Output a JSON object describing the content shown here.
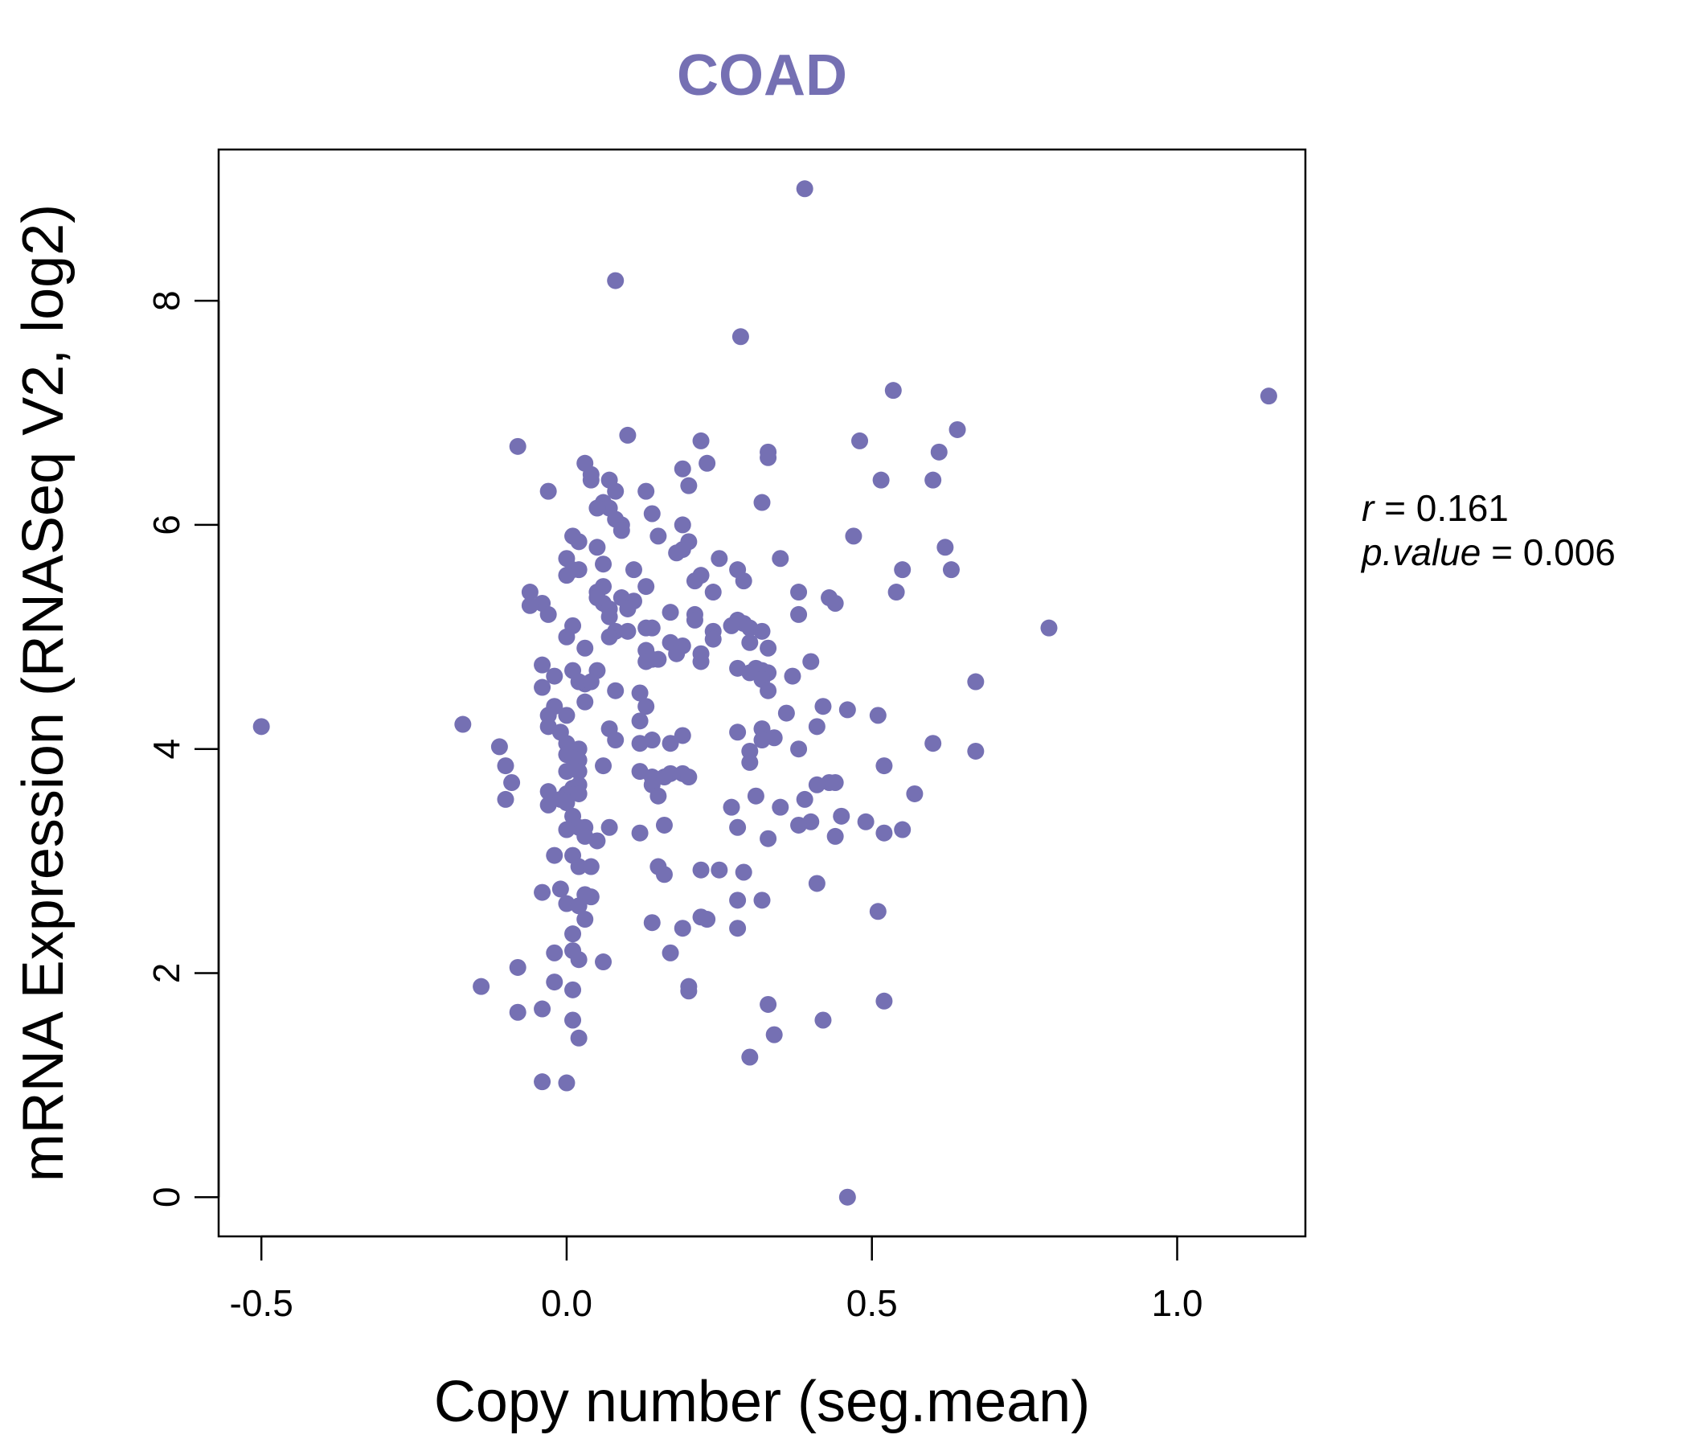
{
  "chart_data": {
    "type": "scatter",
    "title": "COAD",
    "xlabel": "Copy number (seg.mean)",
    "ylabel": "mRNA Expression (RNASeq V2, log2)",
    "xlim": [
      -0.57,
      1.21
    ],
    "ylim": [
      -0.35,
      9.35
    ],
    "x_ticks": [
      -0.5,
      0.0,
      0.5,
      1.0
    ],
    "x_tick_labels": [
      "-0.5",
      "0.0",
      "0.5",
      "1.0"
    ],
    "y_ticks": [
      0,
      2,
      4,
      6,
      8
    ],
    "y_tick_labels": [
      "0",
      "2",
      "4",
      "6",
      "8"
    ],
    "point_color": "#7570b3",
    "stats": {
      "r_symbol": "r",
      "r_value": "0.161",
      "p_symbol": "p.value",
      "p_value": "0.006"
    },
    "points": [
      [
        -0.5,
        4.2
      ],
      [
        1.15,
        7.15
      ],
      [
        0.39,
        9.0
      ],
      [
        0.08,
        8.18
      ],
      [
        0.285,
        7.68
      ],
      [
        0.535,
        7.2
      ],
      [
        0.64,
        6.85
      ],
      [
        0.61,
        6.65
      ],
      [
        0.48,
        6.75
      ],
      [
        0.1,
        6.8
      ],
      [
        -0.08,
        6.7
      ],
      [
        0.22,
        6.75
      ],
      [
        0.33,
        6.65
      ],
      [
        0.33,
        6.6
      ],
      [
        0.23,
        6.55
      ],
      [
        0.19,
        6.5
      ],
      [
        0.03,
        6.55
      ],
      [
        0.04,
        6.45
      ],
      [
        0.07,
        6.4
      ],
      [
        0.04,
        6.4
      ],
      [
        0.2,
        6.35
      ],
      [
        0.08,
        6.3
      ],
      [
        0.13,
        6.3
      ],
      [
        -0.03,
        6.3
      ],
      [
        0.515,
        6.4
      ],
      [
        0.6,
        6.4
      ],
      [
        0.32,
        6.2
      ],
      [
        0.06,
        6.2
      ],
      [
        0.07,
        6.15
      ],
      [
        0.05,
        6.15
      ],
      [
        0.14,
        6.1
      ],
      [
        0.08,
        6.05
      ],
      [
        0.09,
        6.0
      ],
      [
        0.19,
        6.0
      ],
      [
        0.09,
        5.95
      ],
      [
        0.47,
        5.9
      ],
      [
        0.01,
        5.9
      ],
      [
        0.02,
        5.85
      ],
      [
        0.15,
        5.9
      ],
      [
        0.2,
        5.85
      ],
      [
        0.62,
        5.8
      ],
      [
        0.05,
        5.8
      ],
      [
        0.18,
        5.75
      ],
      [
        0.19,
        5.78
      ],
      [
        0.35,
        5.7
      ],
      [
        0.0,
        5.7
      ],
      [
        0.25,
        5.7
      ],
      [
        0.06,
        5.65
      ],
      [
        0.01,
        5.6
      ],
      [
        0.02,
        5.6
      ],
      [
        0.11,
        5.6
      ],
      [
        0.28,
        5.6
      ],
      [
        0.22,
        5.55
      ],
      [
        0.21,
        5.5
      ],
      [
        0.29,
        5.5
      ],
      [
        0.0,
        5.55
      ],
      [
        0.55,
        5.6
      ],
      [
        0.63,
        5.6
      ],
      [
        0.06,
        5.45
      ],
      [
        0.13,
        5.45
      ],
      [
        0.05,
        5.4
      ],
      [
        0.38,
        5.4
      ],
      [
        0.54,
        5.4
      ],
      [
        -0.06,
        5.4
      ],
      [
        0.24,
        5.4
      ],
      [
        0.05,
        5.35
      ],
      [
        0.09,
        5.35
      ],
      [
        0.11,
        5.32
      ],
      [
        -0.04,
        5.3
      ],
      [
        0.06,
        5.3
      ],
      [
        0.43,
        5.35
      ],
      [
        0.44,
        5.3
      ],
      [
        -0.06,
        5.28
      ],
      [
        0.07,
        5.25
      ],
      [
        0.1,
        5.25
      ],
      [
        0.17,
        5.22
      ],
      [
        -0.03,
        5.2
      ],
      [
        0.21,
        5.2
      ],
      [
        0.07,
        5.18
      ],
      [
        0.38,
        5.2
      ],
      [
        0.28,
        5.15
      ],
      [
        0.29,
        5.12
      ],
      [
        0.27,
        5.1
      ],
      [
        0.21,
        5.15
      ],
      [
        0.01,
        5.1
      ],
      [
        0.08,
        5.05
      ],
      [
        0.1,
        5.05
      ],
      [
        0.13,
        5.08
      ],
      [
        0.14,
        5.08
      ],
      [
        0.3,
        5.08
      ],
      [
        0.32,
        5.05
      ],
      [
        0.24,
        5.05
      ],
      [
        0.79,
        5.08
      ],
      [
        0.0,
        5.0
      ],
      [
        0.03,
        4.9
      ],
      [
        0.07,
        5.0
      ],
      [
        0.24,
        4.98
      ],
      [
        0.3,
        4.95
      ],
      [
        0.17,
        4.95
      ],
      [
        0.19,
        4.92
      ],
      [
        0.33,
        4.9
      ],
      [
        0.13,
        4.88
      ],
      [
        0.22,
        4.85
      ],
      [
        0.18,
        4.85
      ],
      [
        0.14,
        4.8
      ],
      [
        0.15,
        4.8
      ],
      [
        0.13,
        4.78
      ],
      [
        0.22,
        4.78
      ],
      [
        0.4,
        4.78
      ],
      [
        -0.04,
        4.75
      ],
      [
        0.28,
        4.72
      ],
      [
        0.31,
        4.72
      ],
      [
        0.32,
        4.7
      ],
      [
        0.01,
        4.7
      ],
      [
        0.05,
        4.7
      ],
      [
        0.33,
        4.68
      ],
      [
        0.37,
        4.65
      ],
      [
        -0.02,
        4.65
      ],
      [
        0.3,
        4.68
      ],
      [
        0.32,
        4.62
      ],
      [
        0.67,
        4.6
      ],
      [
        0.03,
        4.58
      ],
      [
        0.02,
        4.6
      ],
      [
        0.04,
        4.6
      ],
      [
        -0.04,
        4.55
      ],
      [
        0.08,
        4.52
      ],
      [
        0.33,
        4.52
      ],
      [
        0.12,
        4.5
      ],
      [
        0.03,
        4.42
      ],
      [
        0.13,
        4.38
      ],
      [
        0.42,
        4.38
      ],
      [
        0.46,
        4.35
      ],
      [
        0.51,
        4.3
      ],
      [
        0.36,
        4.32
      ],
      [
        -0.02,
        4.38
      ],
      [
        -0.03,
        4.3
      ],
      [
        0.0,
        4.3
      ],
      [
        0.12,
        4.25
      ],
      [
        -0.17,
        4.22
      ],
      [
        -0.03,
        4.2
      ],
      [
        -0.01,
        4.15
      ],
      [
        0.41,
        4.2
      ],
      [
        0.32,
        4.18
      ],
      [
        0.07,
        4.18
      ],
      [
        0.28,
        4.15
      ],
      [
        0.19,
        4.12
      ],
      [
        0.34,
        4.1
      ],
      [
        0.14,
        4.08
      ],
      [
        0.08,
        4.08
      ],
      [
        0.12,
        4.05
      ],
      [
        0.17,
        4.05
      ],
      [
        0.6,
        4.05
      ],
      [
        0.32,
        4.08
      ],
      [
        0.0,
        4.05
      ],
      [
        -0.11,
        4.02
      ],
      [
        0.02,
        4.0
      ],
      [
        0.38,
        4.0
      ],
      [
        0.3,
        3.98
      ],
      [
        0.67,
        3.98
      ],
      [
        0.0,
        3.95
      ],
      [
        0.01,
        3.92
      ],
      [
        0.02,
        3.9
      ],
      [
        0.3,
        3.88
      ],
      [
        0.06,
        3.85
      ],
      [
        -0.1,
        3.85
      ],
      [
        0.52,
        3.85
      ],
      [
        0.12,
        3.8
      ],
      [
        0.02,
        3.8
      ],
      [
        0.0,
        3.8
      ],
      [
        0.17,
        3.78
      ],
      [
        0.19,
        3.78
      ],
      [
        0.14,
        3.75
      ],
      [
        0.2,
        3.75
      ],
      [
        0.16,
        3.75
      ],
      [
        -0.09,
        3.7
      ],
      [
        0.43,
        3.7
      ],
      [
        0.44,
        3.7
      ],
      [
        0.41,
        3.68
      ],
      [
        0.02,
        3.68
      ],
      [
        0.14,
        3.68
      ],
      [
        0.01,
        3.65
      ],
      [
        -0.03,
        3.62
      ],
      [
        0.0,
        3.6
      ],
      [
        0.02,
        3.6
      ],
      [
        0.15,
        3.58
      ],
      [
        0.57,
        3.6
      ],
      [
        0.31,
        3.58
      ],
      [
        0.39,
        3.55
      ],
      [
        -0.1,
        3.55
      ],
      [
        -0.01,
        3.55
      ],
      [
        0.0,
        3.52
      ],
      [
        -0.03,
        3.5
      ],
      [
        0.27,
        3.48
      ],
      [
        0.35,
        3.48
      ],
      [
        0.01,
        3.4
      ],
      [
        0.45,
        3.4
      ],
      [
        0.4,
        3.35
      ],
      [
        0.49,
        3.35
      ],
      [
        0.38,
        3.32
      ],
      [
        0.16,
        3.32
      ],
      [
        0.02,
        3.3
      ],
      [
        0.03,
        3.3
      ],
      [
        0.07,
        3.3
      ],
      [
        0.28,
        3.3
      ],
      [
        0.55,
        3.28
      ],
      [
        0.52,
        3.25
      ],
      [
        0.12,
        3.25
      ],
      [
        0.0,
        3.28
      ],
      [
        0.03,
        3.22
      ],
      [
        0.44,
        3.22
      ],
      [
        0.33,
        3.2
      ],
      [
        0.05,
        3.18
      ],
      [
        -0.02,
        3.05
      ],
      [
        0.01,
        3.05
      ],
      [
        0.02,
        2.95
      ],
      [
        0.04,
        2.95
      ],
      [
        0.15,
        2.95
      ],
      [
        0.22,
        2.92
      ],
      [
        0.25,
        2.92
      ],
      [
        0.29,
        2.9
      ],
      [
        0.16,
        2.88
      ],
      [
        0.41,
        2.8
      ],
      [
        -0.04,
        2.72
      ],
      [
        -0.01,
        2.75
      ],
      [
        0.03,
        2.7
      ],
      [
        0.04,
        2.68
      ],
      [
        0.28,
        2.65
      ],
      [
        0.32,
        2.65
      ],
      [
        0.0,
        2.62
      ],
      [
        0.02,
        2.6
      ],
      [
        0.51,
        2.55
      ],
      [
        0.22,
        2.5
      ],
      [
        0.23,
        2.48
      ],
      [
        0.03,
        2.48
      ],
      [
        0.14,
        2.45
      ],
      [
        0.19,
        2.4
      ],
      [
        0.28,
        2.4
      ],
      [
        0.01,
        2.35
      ],
      [
        0.01,
        2.2
      ],
      [
        -0.02,
        2.18
      ],
      [
        0.17,
        2.18
      ],
      [
        0.02,
        2.12
      ],
      [
        0.06,
        2.1
      ],
      [
        -0.08,
        2.05
      ],
      [
        -0.02,
        1.92
      ],
      [
        -0.14,
        1.88
      ],
      [
        0.2,
        1.88
      ],
      [
        0.2,
        1.84
      ],
      [
        0.01,
        1.85
      ],
      [
        0.52,
        1.75
      ],
      [
        0.33,
        1.72
      ],
      [
        -0.08,
        1.65
      ],
      [
        -0.04,
        1.68
      ],
      [
        0.01,
        1.58
      ],
      [
        0.42,
        1.58
      ],
      [
        0.02,
        1.42
      ],
      [
        0.34,
        1.45
      ],
      [
        0.3,
        1.25
      ],
      [
        -0.04,
        1.03
      ],
      [
        0.0,
        1.02
      ],
      [
        0.46,
        0.0
      ]
    ]
  }
}
